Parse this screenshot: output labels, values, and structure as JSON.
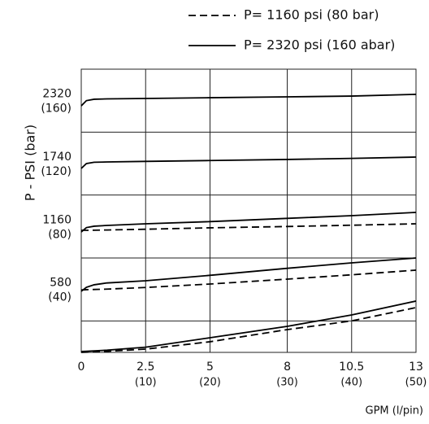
{
  "chart_data": {
    "type": "line",
    "x_label": "GPM (l/pin)",
    "y_label": "P - PSI (bar)",
    "x": [
      0,
      0.2,
      0.5,
      1,
      2.5,
      5,
      8,
      10.5,
      13
    ],
    "xlim": [
      0,
      13
    ],
    "xticks": [
      {
        "value": 0,
        "label": [
          "0"
        ]
      },
      {
        "value": 2.5,
        "label": [
          "2.5",
          "(10)"
        ]
      },
      {
        "value": 5,
        "label": [
          "5",
          "(20)"
        ]
      },
      {
        "value": 8,
        "label": [
          "8",
          "(30)"
        ]
      },
      {
        "value": 10.5,
        "label": [
          "10.5",
          "(40)"
        ]
      },
      {
        "value": 13,
        "label": [
          "13",
          "(50)"
        ]
      }
    ],
    "ylim": [
      0,
      2610
    ],
    "yticks": [
      {
        "value": 580,
        "label": [
          "580",
          "(40)"
        ]
      },
      {
        "value": 1160,
        "label": [
          "1160",
          "(80)"
        ]
      },
      {
        "value": 1740,
        "label": [
          "1740",
          "(120)"
        ]
      },
      {
        "value": 2320,
        "label": [
          "2320",
          "(160)"
        ]
      }
    ],
    "ygrid": [
      290,
      870,
      1450,
      2030
    ],
    "grid": true,
    "legend": "top-right",
    "series": [
      {
        "name": "P= 1160 psi (80 bar)",
        "color": "#000000",
        "dashed": true,
        "lines": [
          [
            1125,
            1125,
            1126,
            1128,
            1135,
            1148,
            1160,
            1172,
            1185
          ],
          [
            575,
            578,
            580,
            583,
            598,
            630,
            675,
            715,
            758
          ],
          [
            0,
            2,
            5,
            10,
            30,
            98,
            210,
            290,
            413
          ]
        ]
      },
      {
        "name": "P= 2320 psi (160 abar)",
        "color": "#000000",
        "dashed": false,
        "lines": [
          [
            2272,
            2320,
            2333,
            2336,
            2340,
            2347,
            2355,
            2362,
            2378
          ],
          [
            1695,
            1740,
            1752,
            1755,
            1760,
            1768,
            1778,
            1788,
            1800
          ],
          [
            1110,
            1150,
            1163,
            1170,
            1185,
            1205,
            1235,
            1260,
            1290
          ],
          [
            563,
            600,
            623,
            640,
            660,
            710,
            775,
            825,
            870
          ],
          [
            8,
            10,
            14,
            20,
            48,
            135,
            240,
            345,
            473
          ]
        ]
      }
    ]
  }
}
